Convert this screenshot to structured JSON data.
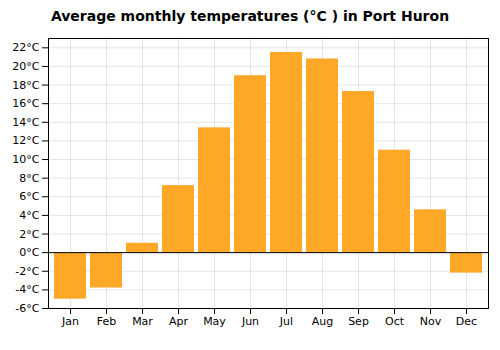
{
  "chart_data": {
    "type": "bar",
    "title": "Average monthly temperatures (°C ) in Port Huron",
    "categories": [
      "Jan",
      "Feb",
      "Mar",
      "Apr",
      "May",
      "Jun",
      "Jul",
      "Aug",
      "Sep",
      "Oct",
      "Nov",
      "Dec"
    ],
    "values": [
      -5.0,
      -3.8,
      1.0,
      7.2,
      13.4,
      19.0,
      21.5,
      20.8,
      17.3,
      11.0,
      4.6,
      -2.2
    ],
    "color": "#FFA726",
    "ylim": [
      -6,
      23
    ],
    "yticks": [
      {
        "value": -6,
        "label": "-6°C"
      },
      {
        "value": -4,
        "label": "-4°C"
      },
      {
        "value": -2,
        "label": "-2°C"
      },
      {
        "value": 0,
        "label": "0°C"
      },
      {
        "value": 2,
        "label": "2°C"
      },
      {
        "value": 4,
        "label": "4°C"
      },
      {
        "value": 6,
        "label": "6°C"
      },
      {
        "value": 8,
        "label": "8°C"
      },
      {
        "value": 10,
        "label": "10°C"
      },
      {
        "value": 12,
        "label": "12°C"
      },
      {
        "value": 14,
        "label": "14°C"
      },
      {
        "value": 16,
        "label": "16°C"
      },
      {
        "value": 18,
        "label": "18°C"
      },
      {
        "value": 20,
        "label": "20°C"
      },
      {
        "value": 22,
        "label": "22°C"
      }
    ],
    "grid": true
  }
}
